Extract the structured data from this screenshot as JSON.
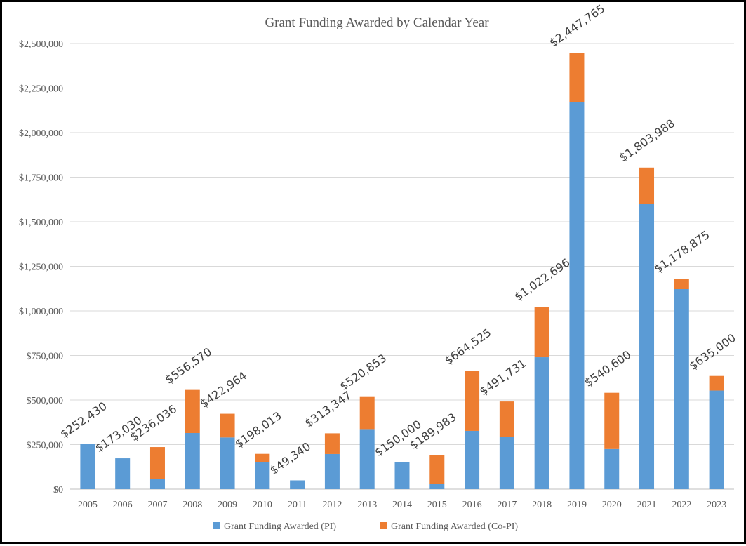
{
  "chart_data": {
    "type": "bar",
    "stacked": true,
    "title": "Grant Funding Awarded by Calendar Year",
    "categories": [
      "2005",
      "2006",
      "2007",
      "2008",
      "2009",
      "2010",
      "2011",
      "2012",
      "2013",
      "2014",
      "2015",
      "2016",
      "2017",
      "2018",
      "2019",
      "2020",
      "2021",
      "2022",
      "2023"
    ],
    "series": [
      {
        "name": "Grant Funding Awarded (PI)",
        "color": "#5b9bd5",
        "values": [
          252430,
          173030,
          58000,
          315000,
          290000,
          150000,
          49340,
          197000,
          337000,
          150000,
          30000,
          327000,
          295000,
          740000,
          2170000,
          225000,
          1600000,
          1122000,
          553000
        ]
      },
      {
        "name": "Grant Funding Awarded (Co-PI)",
        "color": "#ed7d31",
        "values": [
          0,
          0,
          178036,
          241570,
          132964,
          48013,
          0,
          116347,
          183853,
          0,
          159983,
          337525,
          196731,
          282696,
          277765,
          315600,
          203988,
          56875,
          82000
        ]
      }
    ],
    "totals_labels": [
      "$252,430",
      "$173,030",
      "$236,036",
      "$556,570",
      "$422,964",
      "$198,013",
      "$49,340",
      "$313,347",
      "$520,853",
      "$150,000",
      "$189,983",
      "$664,525",
      "$491,731",
      "$1,022,696",
      "$2,447,765",
      "$540,600",
      "$1,803,988",
      "$1,178,875",
      "$635,000"
    ],
    "totals": [
      252430,
      173030,
      236036,
      556570,
      422964,
      198013,
      49340,
      313347,
      520853,
      150000,
      189983,
      664525,
      491731,
      1022696,
      2447765,
      540600,
      1803988,
      1178875,
      635000
    ],
    "y_ticks": [
      0,
      250000,
      500000,
      750000,
      1000000,
      1250000,
      1500000,
      1750000,
      2000000,
      2250000,
      2500000
    ],
    "y_tick_labels": [
      "$0",
      "$250,000",
      "$500,000",
      "$750,000",
      "$1,000,000",
      "$1,250,000",
      "$1,500,000",
      "$1,750,000",
      "$2,000,000",
      "$2,250,000",
      "$2,500,000"
    ],
    "ylim": [
      0,
      2500000
    ],
    "grid": true,
    "legend_position": "bottom"
  }
}
